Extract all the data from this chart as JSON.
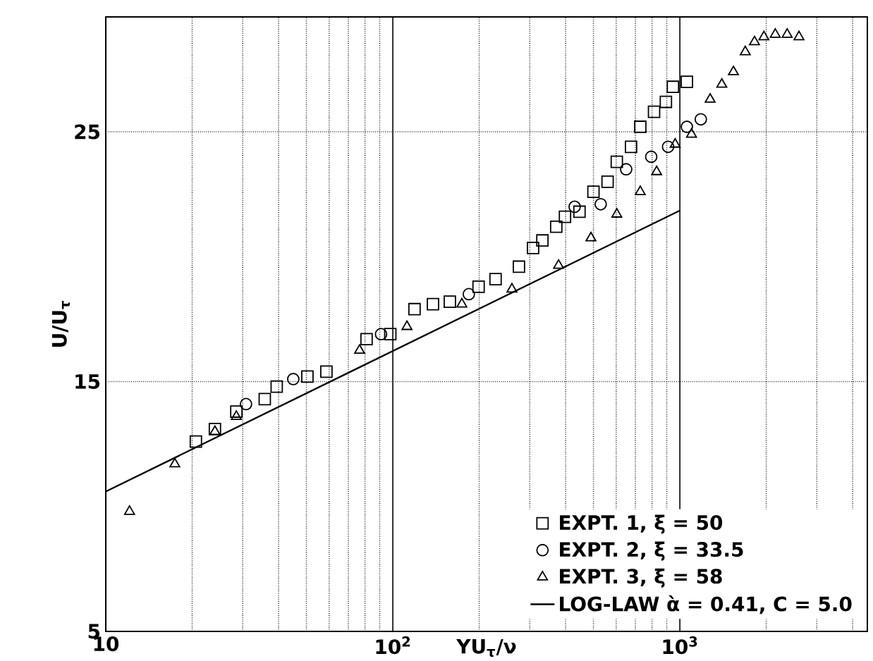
{
  "chart_data": {
    "type": "scatter",
    "xlabel": "YU$_{τ}$/ν",
    "ylabel": "U/U$_{τ}$",
    "log": "x",
    "grid": true,
    "legend": "bottom right",
    "xlim": [
      10,
      4500
    ],
    "ylim": [
      5,
      29.6
    ],
    "xticks": [
      10,
      {
        "value": 100,
        "label": "10$^{2}$"
      },
      {
        "value": 1000,
        "label": "10$^{3}$"
      }
    ],
    "yticks": [
      5,
      15,
      25
    ],
    "series": [
      {
        "name": "EXPT. 1,  ξ = 50",
        "marker": "square",
        "color": "#000000",
        "x": [
          20.6,
          24,
          28.5,
          35.8,
          39.4,
          50.4,
          58.7,
          81,
          98,
          119,
          138,
          158,
          199,
          228,
          275,
          308,
          332,
          371,
          398,
          447,
          500,
          560,
          603,
          676,
          728,
          813,
          894,
          946,
          1058
        ],
        "values": [
          12.6,
          13.1,
          13.8,
          14.3,
          14.8,
          15.2,
          15.4,
          16.7,
          16.9,
          17.9,
          18.1,
          18.2,
          18.8,
          19.1,
          19.6,
          20.35,
          20.65,
          21.2,
          21.6,
          21.8,
          22.6,
          23.0,
          23.8,
          24.4,
          25.2,
          25.8,
          26.2,
          26.8,
          27.0
        ]
      },
      {
        "name": "EXPT. 2,  ξ = 33.5",
        "marker": "circle",
        "color": "#000000",
        "x": [
          30.8,
          45,
          91,
          184,
          430,
          530,
          650,
          795,
          910,
          1058,
          1183
        ],
        "values": [
          14.1,
          15.1,
          16.9,
          18.5,
          22.0,
          22.1,
          23.5,
          24.0,
          24.4,
          25.2,
          25.5
        ]
      },
      {
        "name": "EXPT. 3,  ξ = 58",
        "marker": "triangle",
        "color": "#000000",
        "x": [
          12.1,
          17.4,
          24,
          28.5,
          76.6,
          112,
          174,
          260,
          378,
          490,
          603,
          728,
          830,
          963,
          1098,
          1275,
          1400,
          1537,
          1690,
          1820,
          1963,
          2150,
          2365,
          2600
        ],
        "values": [
          9.8,
          11.7,
          13.0,
          13.6,
          16.25,
          17.2,
          18.1,
          18.7,
          19.65,
          20.75,
          21.7,
          22.6,
          23.4,
          24.5,
          24.9,
          26.3,
          26.9,
          27.4,
          28.2,
          28.6,
          28.8,
          28.9,
          28.9,
          28.8
        ]
      },
      {
        "name": "LOG-LAW ὰ = 0.41,  C = 5.0",
        "type": "line",
        "marker": "none",
        "line_style": "solid",
        "color": "#000000",
        "x": [
          10,
          1000
        ],
        "values": [
          10.6,
          21.85
        ]
      }
    ]
  }
}
